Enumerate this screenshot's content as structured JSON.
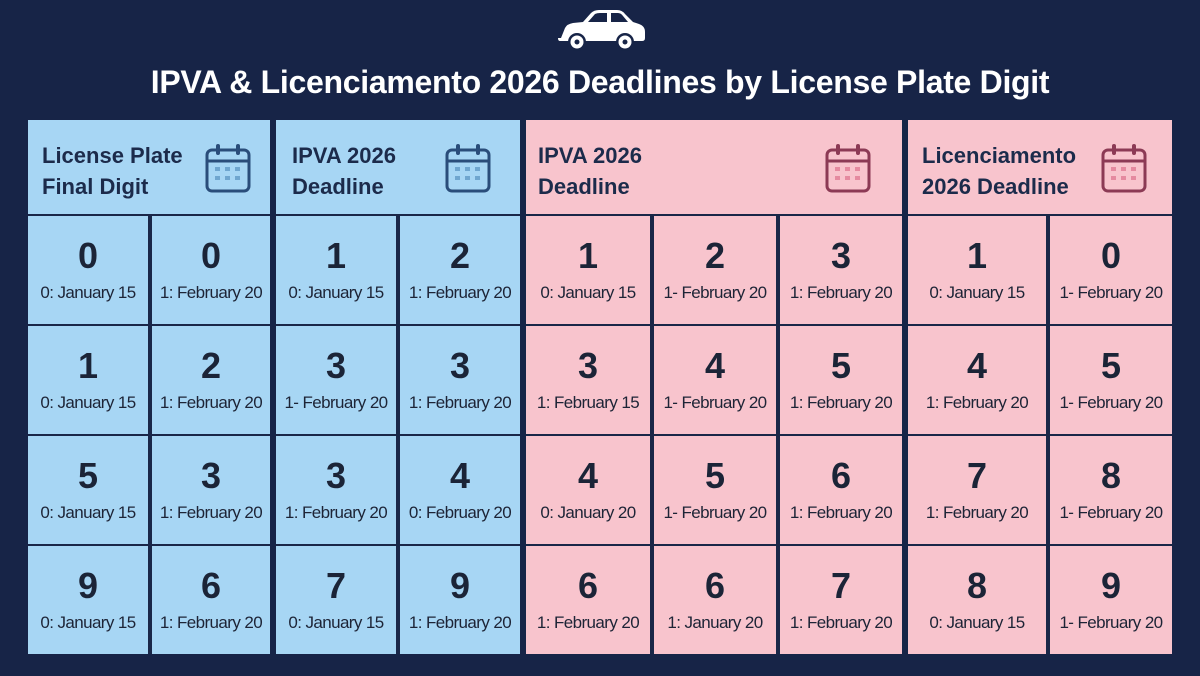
{
  "title": "IPVA & Licenciamento 2026 Deadlines by License Plate Digit",
  "icons": {
    "header": "car-icon",
    "columns": "calendar-icon"
  },
  "colors": {
    "background": "#172447",
    "blue_panel": "#a7d6f4",
    "pink_panel": "#f8c4cd",
    "text": "#1b2437"
  },
  "headers": {
    "plate": [
      "License Plate",
      "Final Digit"
    ],
    "ipva_blue": [
      "IPVA 2026",
      "Deadline"
    ],
    "ipva_pink": [
      "IPVA 2026",
      "Deadline"
    ],
    "licenciamento": [
      "Licenciamento",
      "2026 Deadline"
    ]
  },
  "rows": [
    [
      {
        "digit": "0",
        "date": "0: January 15"
      },
      {
        "digit": "0",
        "date": "1: February 20"
      },
      {
        "digit": "1",
        "date": "0: January 15"
      },
      {
        "digit": "2",
        "date": "1: February 20"
      },
      {
        "digit": "1",
        "date": "0: January 15"
      },
      {
        "digit": "2",
        "date": "1- February 20"
      },
      {
        "digit": "3",
        "date": "1: February 20"
      },
      {
        "digit": "1",
        "date": "0: January 15"
      },
      {
        "digit": "0",
        "date": "1- February 20"
      }
    ],
    [
      {
        "digit": "1",
        "date": "0: January 15"
      },
      {
        "digit": "2",
        "date": "1: February 20"
      },
      {
        "digit": "3",
        "date": "1- February 20"
      },
      {
        "digit": "3",
        "date": "1: February 20"
      },
      {
        "digit": "3",
        "date": "1: February 15"
      },
      {
        "digit": "4",
        "date": "1- February 20"
      },
      {
        "digit": "5",
        "date": "1: February 20"
      },
      {
        "digit": "4",
        "date": "1: February 20"
      },
      {
        "digit": "5",
        "date": "1- February 20"
      }
    ],
    [
      {
        "digit": "5",
        "date": "0: January 15"
      },
      {
        "digit": "3",
        "date": "1: February 20"
      },
      {
        "digit": "3",
        "date": "1: February 20"
      },
      {
        "digit": "4",
        "date": "0: February 20"
      },
      {
        "digit": "4",
        "date": "0: January 20"
      },
      {
        "digit": "5",
        "date": "1- February 20"
      },
      {
        "digit": "6",
        "date": "1: February 20"
      },
      {
        "digit": "7",
        "date": "1: February 20"
      },
      {
        "digit": "8",
        "date": "1- February 20"
      }
    ],
    [
      {
        "digit": "9",
        "date": "0: January 15"
      },
      {
        "digit": "6",
        "date": "1: February 20"
      },
      {
        "digit": "7",
        "date": "0: January 15"
      },
      {
        "digit": "9",
        "date": "1: February 20"
      },
      {
        "digit": "6",
        "date": "1: February 20"
      },
      {
        "digit": "6",
        "date": "1: January 20"
      },
      {
        "digit": "7",
        "date": "1: February 20"
      },
      {
        "digit": "8",
        "date": "0: January 15"
      },
      {
        "digit": "9",
        "date": "1- February 20"
      }
    ]
  ]
}
